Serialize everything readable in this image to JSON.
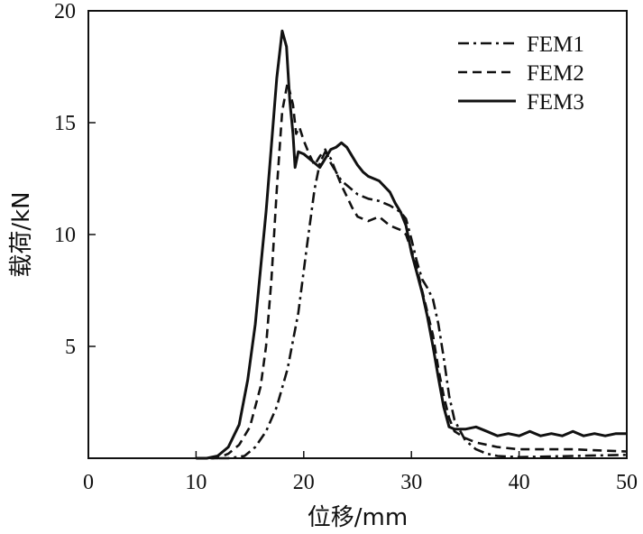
{
  "chart_data": {
    "type": "line",
    "xlabel": "位移/mm",
    "ylabel": "载荷/kN",
    "xlim": [
      0,
      50
    ],
    "ylim": [
      0,
      20
    ],
    "x_ticks": [
      0,
      10,
      20,
      30,
      40,
      50
    ],
    "y_ticks": [
      0,
      5,
      10,
      15,
      20
    ],
    "y_tick_labels": [
      "",
      "5",
      "10",
      "15",
      "20"
    ],
    "grid": false,
    "legend_position": "top-right",
    "series": [
      {
        "name": "FEM1",
        "style": "dashdot",
        "color": "#111111",
        "points": [
          [
            10,
            0
          ],
          [
            13,
            0
          ],
          [
            14.5,
            0.1
          ],
          [
            15.5,
            0.5
          ],
          [
            16.5,
            1.2
          ],
          [
            17.5,
            2.3
          ],
          [
            18.5,
            4
          ],
          [
            19.5,
            6.5
          ],
          [
            20.3,
            9.5
          ],
          [
            21,
            12
          ],
          [
            21.5,
            13.2
          ],
          [
            22,
            13.7
          ],
          [
            22.5,
            13.4
          ],
          [
            23,
            12.8
          ],
          [
            23.5,
            12.4
          ],
          [
            24,
            12.2
          ],
          [
            24.5,
            12.0
          ],
          [
            25,
            11.8
          ],
          [
            26,
            11.6
          ],
          [
            27,
            11.5
          ],
          [
            28,
            11.3
          ],
          [
            29,
            11.0
          ],
          [
            29.5,
            10.7
          ],
          [
            30,
            9.8
          ],
          [
            30.5,
            8.8
          ],
          [
            31,
            8.0
          ],
          [
            31.5,
            7.6
          ],
          [
            32,
            7.1
          ],
          [
            32.5,
            6.0
          ],
          [
            33,
            4.5
          ],
          [
            33.5,
            2.8
          ],
          [
            34,
            1.7
          ],
          [
            35,
            0.8
          ],
          [
            36,
            0.4
          ],
          [
            37,
            0.2
          ],
          [
            38,
            0.1
          ],
          [
            40,
            0.05
          ],
          [
            45,
            0.1
          ],
          [
            50,
            0.15
          ]
        ]
      },
      {
        "name": "FEM2",
        "style": "dashed",
        "color": "#111111",
        "points": [
          [
            10,
            0
          ],
          [
            12,
            0
          ],
          [
            13,
            0.2
          ],
          [
            14,
            0.6
          ],
          [
            15,
            1.4
          ],
          [
            16,
            3.2
          ],
          [
            16.5,
            5
          ],
          [
            17,
            8
          ],
          [
            17.5,
            12
          ],
          [
            18,
            15.5
          ],
          [
            18.5,
            16.8
          ],
          [
            19,
            15.8
          ],
          [
            19.3,
            14.5
          ],
          [
            19.6,
            14.8
          ],
          [
            20,
            14.2
          ],
          [
            20.5,
            13.6
          ],
          [
            21,
            13.1
          ],
          [
            21.5,
            13.5
          ],
          [
            22,
            13.8
          ],
          [
            22.5,
            13.2
          ],
          [
            23,
            12.8
          ],
          [
            23.5,
            12.2
          ],
          [
            24,
            11.7
          ],
          [
            24.5,
            11.2
          ],
          [
            25,
            10.8
          ],
          [
            26,
            10.6
          ],
          [
            27,
            10.8
          ],
          [
            28,
            10.4
          ],
          [
            29,
            10.2
          ],
          [
            29.5,
            10.0
          ],
          [
            30,
            9.3
          ],
          [
            30.5,
            8.5
          ],
          [
            31,
            7.5
          ],
          [
            31.5,
            6.5
          ],
          [
            32,
            5.5
          ],
          [
            32.5,
            4.0
          ],
          [
            33,
            2.8
          ],
          [
            33.5,
            1.8
          ],
          [
            34,
            1.2
          ],
          [
            35,
            0.9
          ],
          [
            36,
            0.7
          ],
          [
            38,
            0.5
          ],
          [
            40,
            0.4
          ],
          [
            45,
            0.4
          ],
          [
            50,
            0.3
          ]
        ]
      },
      {
        "name": "FEM3",
        "style": "solid",
        "color": "#111111",
        "points": [
          [
            10,
            0
          ],
          [
            11,
            0
          ],
          [
            12,
            0.1
          ],
          [
            13,
            0.5
          ],
          [
            14,
            1.5
          ],
          [
            14.8,
            3.5
          ],
          [
            15.5,
            6
          ],
          [
            16,
            8.5
          ],
          [
            16.5,
            11
          ],
          [
            17,
            14
          ],
          [
            17.5,
            17
          ],
          [
            18,
            19.1
          ],
          [
            18.4,
            18.4
          ],
          [
            18.7,
            16
          ],
          [
            19,
            14.5
          ],
          [
            19.2,
            13.0
          ],
          [
            19.5,
            13.7
          ],
          [
            20,
            13.6
          ],
          [
            20.5,
            13.4
          ],
          [
            21,
            13.2
          ],
          [
            21.5,
            13.0
          ],
          [
            22,
            13.4
          ],
          [
            22.5,
            13.8
          ],
          [
            23,
            13.9
          ],
          [
            23.5,
            14.1
          ],
          [
            24,
            13.9
          ],
          [
            24.5,
            13.5
          ],
          [
            25,
            13.1
          ],
          [
            25.5,
            12.8
          ],
          [
            26,
            12.6
          ],
          [
            27,
            12.4
          ],
          [
            28,
            11.9
          ],
          [
            28.5,
            11.4
          ],
          [
            29,
            11.0
          ],
          [
            29.5,
            10.4
          ],
          [
            30,
            9.2
          ],
          [
            30.5,
            8.3
          ],
          [
            31,
            7.4
          ],
          [
            31.5,
            6.3
          ],
          [
            32,
            5.0
          ],
          [
            32.5,
            3.6
          ],
          [
            33,
            2.3
          ],
          [
            33.5,
            1.4
          ],
          [
            34,
            1.3
          ],
          [
            35,
            1.3
          ],
          [
            36,
            1.4
          ],
          [
            37,
            1.2
          ],
          [
            38,
            1.0
          ],
          [
            39,
            1.1
          ],
          [
            40,
            1.0
          ],
          [
            41,
            1.2
          ],
          [
            42,
            1.0
          ],
          [
            43,
            1.1
          ],
          [
            44,
            1.0
          ],
          [
            45,
            1.2
          ],
          [
            46,
            1.0
          ],
          [
            47,
            1.1
          ],
          [
            48,
            1.0
          ],
          [
            49,
            1.1
          ],
          [
            50,
            1.1
          ]
        ]
      }
    ]
  }
}
